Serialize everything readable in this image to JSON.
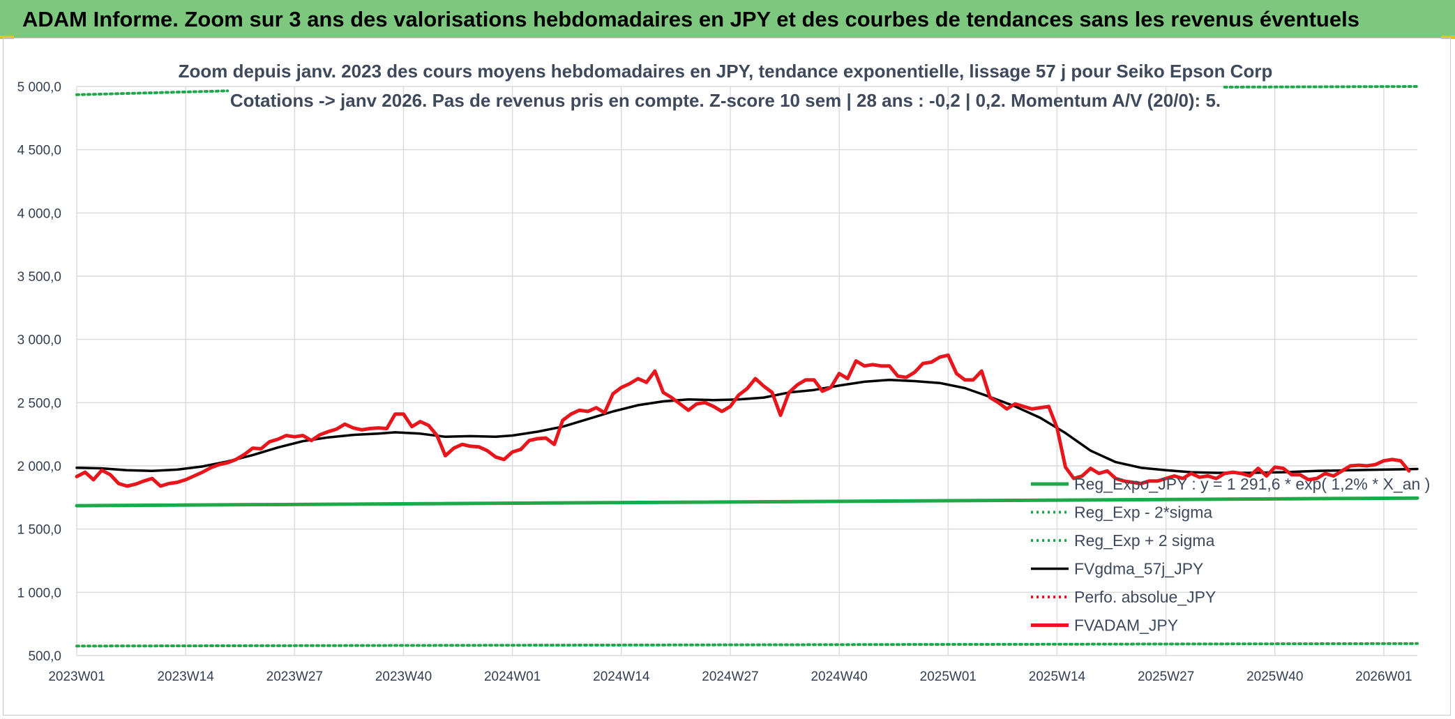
{
  "banner": {
    "title": "ADAM Informe. Zoom sur 3 ans des valorisations hebdomadaires en JPY et des courbes de tendances sans les revenus éventuels"
  },
  "colors": {
    "banner_bg": "#7dc77f",
    "regression": "#1ea84a",
    "sigma_bands": "#1ea84a",
    "moving_average": "#000000",
    "absolute_perf": "#e0161c",
    "fvadam": "#e8161c",
    "grid": "#dcdcdc"
  },
  "chart_data": {
    "type": "line",
    "title": "Zoom depuis janv. 2023 des cours moyens hebdomadaires en JPY, tendance exponentielle, lissage 57 j pour Seiko Epson Corp",
    "subtitle": "Cotations -> janv 2026. Pas de revenus pris en compte. Z-score 10 sem | 28 ans : -0,2 | 0,2. Momentum A/V (20/0): 5.",
    "ylim": [
      500,
      5000
    ],
    "y_ticks": [
      "500,0",
      "1 000,0",
      "1 500,0",
      "2 000,0",
      "2 500,0",
      "3 000,0",
      "3 500,0",
      "4 000,0",
      "4 500,0",
      "5 000,0"
    ],
    "y_tick_values": [
      500,
      1000,
      1500,
      2000,
      2500,
      3000,
      3500,
      4000,
      4500,
      5000
    ],
    "x_ticks": [
      "2023W01",
      "2023W14",
      "2023W27",
      "2023W40",
      "2024W01",
      "2024W14",
      "2024W27",
      "2024W40",
      "2025W01",
      "2025W14",
      "2025W27",
      "2025W40",
      "2026W01"
    ],
    "x_tick_index": [
      0,
      13,
      26,
      39,
      52,
      65,
      78,
      91,
      104,
      117,
      130,
      143,
      156
    ],
    "n_weeks": 161,
    "grid": true,
    "legend_position": "bottom-right",
    "series": [
      {
        "name": "Reg_Expo_JPY : y = 1 291,6 * exp( 1,2% * X_an )",
        "style": "solid-thick",
        "color": "#1ea84a",
        "keypoints": [
          [
            0,
            1685
          ],
          [
            160,
            1745
          ]
        ]
      },
      {
        "name": "Reg_Exp - 2*sigma",
        "style": "dotted",
        "color": "#1ea84a",
        "keypoints": [
          [
            0,
            575
          ],
          [
            160,
            595
          ]
        ]
      },
      {
        "name": "Reg_Exp + 2 sigma",
        "style": "dotted",
        "color": "#1ea84a",
        "segments": [
          [
            [
              0,
              4935
            ],
            [
              18,
              4965
            ]
          ],
          [
            [
              137,
              4995
            ],
            [
              160,
              5000
            ]
          ]
        ]
      },
      {
        "name": "FVgdma_57j_JPY",
        "style": "solid",
        "color": "#000000",
        "keypoints": [
          [
            0,
            1985
          ],
          [
            3,
            1980
          ],
          [
            6,
            1965
          ],
          [
            9,
            1960
          ],
          [
            12,
            1970
          ],
          [
            15,
            1995
          ],
          [
            18,
            2035
          ],
          [
            21,
            2085
          ],
          [
            24,
            2145
          ],
          [
            27,
            2195
          ],
          [
            30,
            2225
          ],
          [
            33,
            2245
          ],
          [
            36,
            2255
          ],
          [
            38,
            2265
          ],
          [
            41,
            2255
          ],
          [
            44,
            2230
          ],
          [
            47,
            2235
          ],
          [
            50,
            2230
          ],
          [
            52,
            2240
          ],
          [
            55,
            2270
          ],
          [
            58,
            2310
          ],
          [
            61,
            2370
          ],
          [
            64,
            2430
          ],
          [
            67,
            2480
          ],
          [
            70,
            2510
          ],
          [
            73,
            2525
          ],
          [
            76,
            2520
          ],
          [
            79,
            2525
          ],
          [
            82,
            2540
          ],
          [
            85,
            2580
          ],
          [
            88,
            2600
          ],
          [
            91,
            2635
          ],
          [
            94,
            2665
          ],
          [
            97,
            2680
          ],
          [
            100,
            2670
          ],
          [
            103,
            2655
          ],
          [
            106,
            2615
          ],
          [
            109,
            2545
          ],
          [
            112,
            2470
          ],
          [
            115,
            2380
          ],
          [
            118,
            2260
          ],
          [
            121,
            2120
          ],
          [
            124,
            2030
          ],
          [
            127,
            1985
          ],
          [
            130,
            1965
          ],
          [
            133,
            1950
          ],
          [
            136,
            1945
          ],
          [
            140,
            1945
          ],
          [
            144,
            1950
          ],
          [
            148,
            1960
          ],
          [
            152,
            1965
          ],
          [
            156,
            1970
          ],
          [
            160,
            1975
          ]
        ]
      },
      {
        "name": "Perfo. absolue_JPY",
        "style": "dotted",
        "color": "#e0161c",
        "keypoints": []
      },
      {
        "name": "FVADAM_JPY",
        "style": "solid-thick",
        "color": "#e8161c",
        "keypoints": [
          [
            0,
            1915
          ],
          [
            1,
            1950
          ],
          [
            2,
            1890
          ],
          [
            3,
            1965
          ],
          [
            4,
            1930
          ],
          [
            5,
            1860
          ],
          [
            6,
            1840
          ],
          [
            7,
            1855
          ],
          [
            8,
            1880
          ],
          [
            9,
            1900
          ],
          [
            10,
            1840
          ],
          [
            11,
            1860
          ],
          [
            12,
            1870
          ],
          [
            13,
            1890
          ],
          [
            14,
            1920
          ],
          [
            15,
            1950
          ],
          [
            16,
            1985
          ],
          [
            17,
            2010
          ],
          [
            18,
            2025
          ],
          [
            19,
            2050
          ],
          [
            20,
            2090
          ],
          [
            21,
            2140
          ],
          [
            22,
            2135
          ],
          [
            23,
            2190
          ],
          [
            24,
            2210
          ],
          [
            25,
            2240
          ],
          [
            26,
            2230
          ],
          [
            27,
            2240
          ],
          [
            28,
            2200
          ],
          [
            29,
            2245
          ],
          [
            30,
            2270
          ],
          [
            31,
            2290
          ],
          [
            32,
            2330
          ],
          [
            33,
            2300
          ],
          [
            34,
            2285
          ],
          [
            35,
            2295
          ],
          [
            36,
            2300
          ],
          [
            37,
            2295
          ],
          [
            38,
            2410
          ],
          [
            39,
            2410
          ],
          [
            40,
            2310
          ],
          [
            41,
            2350
          ],
          [
            42,
            2320
          ],
          [
            43,
            2240
          ],
          [
            44,
            2080
          ],
          [
            45,
            2140
          ],
          [
            46,
            2170
          ],
          [
            47,
            2155
          ],
          [
            48,
            2150
          ],
          [
            49,
            2120
          ],
          [
            50,
            2070
          ],
          [
            51,
            2050
          ],
          [
            52,
            2110
          ],
          [
            53,
            2130
          ],
          [
            54,
            2200
          ],
          [
            55,
            2215
          ],
          [
            56,
            2220
          ],
          [
            57,
            2170
          ],
          [
            58,
            2360
          ],
          [
            59,
            2410
          ],
          [
            60,
            2440
          ],
          [
            61,
            2430
          ],
          [
            62,
            2460
          ],
          [
            63,
            2420
          ],
          [
            64,
            2570
          ],
          [
            65,
            2620
          ],
          [
            66,
            2650
          ],
          [
            67,
            2690
          ],
          [
            68,
            2660
          ],
          [
            69,
            2750
          ],
          [
            70,
            2580
          ],
          [
            71,
            2540
          ],
          [
            72,
            2490
          ],
          [
            73,
            2440
          ],
          [
            74,
            2490
          ],
          [
            75,
            2500
          ],
          [
            76,
            2470
          ],
          [
            77,
            2430
          ],
          [
            78,
            2470
          ],
          [
            79,
            2560
          ],
          [
            80,
            2610
          ],
          [
            81,
            2690
          ],
          [
            82,
            2630
          ],
          [
            83,
            2580
          ],
          [
            84,
            2400
          ],
          [
            85,
            2580
          ],
          [
            86,
            2640
          ],
          [
            87,
            2680
          ],
          [
            88,
            2680
          ],
          [
            89,
            2590
          ],
          [
            90,
            2620
          ],
          [
            91,
            2730
          ],
          [
            92,
            2690
          ],
          [
            93,
            2830
          ],
          [
            94,
            2790
          ],
          [
            95,
            2800
          ],
          [
            96,
            2790
          ],
          [
            97,
            2790
          ],
          [
            98,
            2710
          ],
          [
            99,
            2700
          ],
          [
            100,
            2740
          ],
          [
            101,
            2810
          ],
          [
            102,
            2820
          ],
          [
            103,
            2860
          ],
          [
            104,
            2875
          ],
          [
            105,
            2730
          ],
          [
            106,
            2680
          ],
          [
            107,
            2680
          ],
          [
            108,
            2750
          ],
          [
            109,
            2540
          ],
          [
            110,
            2500
          ],
          [
            111,
            2450
          ],
          [
            112,
            2490
          ],
          [
            113,
            2470
          ],
          [
            114,
            2450
          ],
          [
            115,
            2460
          ],
          [
            116,
            2470
          ],
          [
            117,
            2300
          ],
          [
            118,
            1990
          ],
          [
            119,
            1900
          ],
          [
            120,
            1920
          ],
          [
            121,
            1980
          ],
          [
            122,
            1940
          ],
          [
            123,
            1960
          ],
          [
            124,
            1900
          ],
          [
            125,
            1880
          ],
          [
            126,
            1870
          ],
          [
            127,
            1860
          ],
          [
            128,
            1880
          ],
          [
            129,
            1880
          ],
          [
            130,
            1900
          ],
          [
            131,
            1920
          ],
          [
            132,
            1900
          ],
          [
            133,
            1940
          ],
          [
            134,
            1910
          ],
          [
            135,
            1920
          ],
          [
            136,
            1900
          ],
          [
            137,
            1940
          ],
          [
            138,
            1950
          ],
          [
            139,
            1940
          ],
          [
            140,
            1920
          ],
          [
            141,
            1980
          ],
          [
            142,
            1920
          ],
          [
            143,
            1990
          ],
          [
            144,
            1980
          ],
          [
            145,
            1930
          ],
          [
            146,
            1930
          ],
          [
            147,
            1890
          ],
          [
            148,
            1900
          ],
          [
            149,
            1940
          ],
          [
            150,
            1920
          ],
          [
            151,
            1960
          ],
          [
            152,
            2000
          ],
          [
            153,
            2005
          ],
          [
            154,
            2000
          ],
          [
            155,
            2010
          ],
          [
            156,
            2040
          ],
          [
            157,
            2050
          ],
          [
            158,
            2040
          ],
          [
            159,
            1960
          ]
        ]
      }
    ]
  }
}
